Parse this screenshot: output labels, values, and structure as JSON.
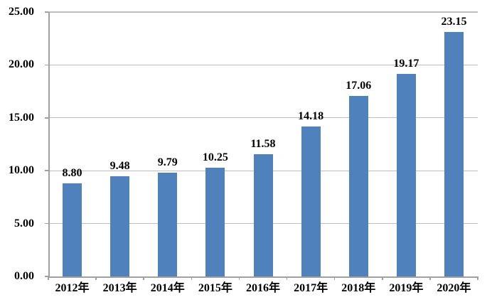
{
  "chart_data": {
    "type": "bar",
    "title": "",
    "xlabel": "",
    "ylabel": "",
    "categories": [
      "2012年",
      "2013年",
      "2014年",
      "2015年",
      "2016年",
      "2017年",
      "2018年",
      "2019年",
      "2020年"
    ],
    "values": [
      8.8,
      9.48,
      9.79,
      10.25,
      11.58,
      14.18,
      17.06,
      19.17,
      23.15
    ],
    "value_labels": [
      "8.80",
      "9.48",
      "9.79",
      "10.25",
      "11.58",
      "14.18",
      "17.06",
      "19.17",
      "23.15"
    ],
    "ylim": [
      0,
      25
    ],
    "ytick_interval": 5,
    "ytick_labels": [
      "0.00",
      "5.00",
      "10.00",
      "15.00",
      "20.00",
      "25.00"
    ],
    "grid": true,
    "legend": false,
    "colors": {
      "bar": "#4f81bd",
      "gridline": "#bebebe",
      "axis": "#a0a0a0",
      "text": "#000000",
      "background": "#ffffff"
    }
  }
}
